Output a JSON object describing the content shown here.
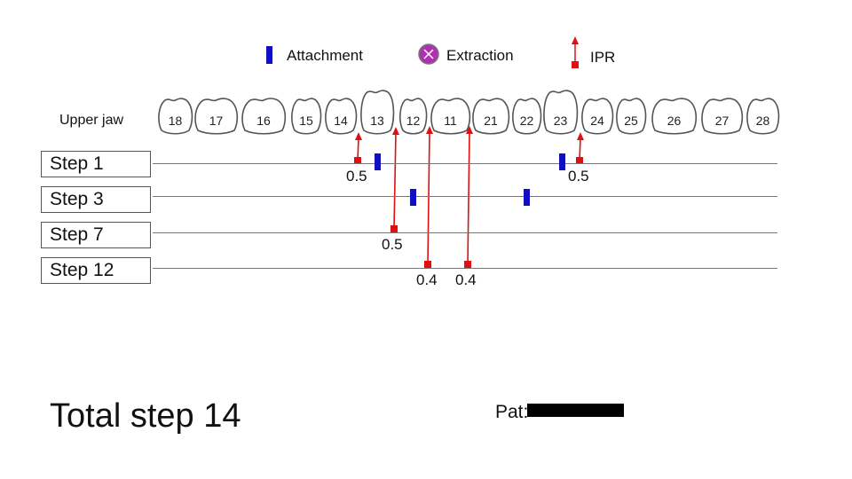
{
  "legend": {
    "attachment_label": "Attachment",
    "extraction_label": "Extraction",
    "ipr_label": "IPR"
  },
  "jaw_label": "Upper jaw",
  "teeth": [
    "18",
    "17",
    "16",
    "15",
    "14",
    "13",
    "12",
    "11",
    "21",
    "22",
    "23",
    "24",
    "25",
    "26",
    "27",
    "28"
  ],
  "steps": [
    "Step 1",
    "Step 3",
    "Step 7",
    "Step 12"
  ],
  "ipr_values": [
    "0.5",
    "0.5",
    "0.5",
    "0.4",
    "0.4"
  ],
  "total_label": "Total step 14",
  "patient_label": "Pat:",
  "colors": {
    "attachment": "#1010c0",
    "ipr": "#e01010",
    "extraction": "#b030b0",
    "tooth_outline": "#555555"
  }
}
